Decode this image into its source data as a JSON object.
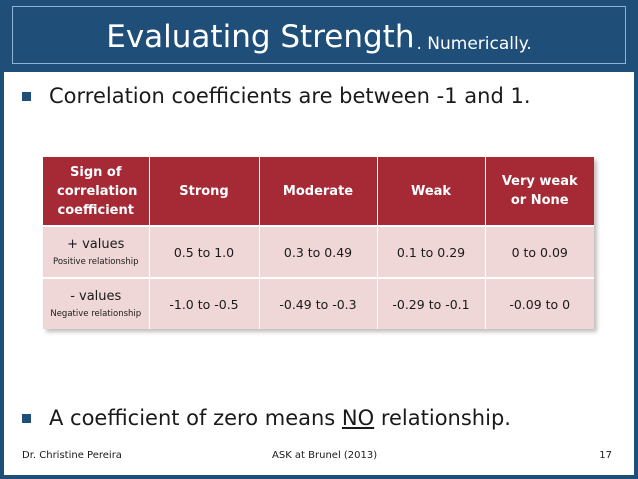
{
  "title": {
    "main": "Evaluating Strength",
    "sub": ". Numerically."
  },
  "bullets": [
    "Correlation coefficients are between -1 and 1.",
    {
      "before": "A coefficient of zero means ",
      "underlined": "NO",
      "after": " relationship."
    }
  ],
  "table": {
    "headers": [
      "Sign of correlation coefficient",
      "Strong",
      "Moderate",
      "Weak",
      "Very weak or None"
    ],
    "rows": [
      {
        "label": "+ values",
        "sublabel": "Positive relationship",
        "cells": [
          "0.5  to  1.0",
          "0.3  to  0.49",
          "0.1  to  0.29",
          "0  to  0.09"
        ]
      },
      {
        "label": "- values",
        "sublabel": "Negative relationship",
        "cells": [
          "-1.0  to  -0.5",
          "-0.49  to  -0.3",
          "-0.29  to  -0.1",
          "-0.09  to  0"
        ]
      }
    ]
  },
  "footer": {
    "author": "Dr. Christine Pereira",
    "source": "ASK at Brunel (2013)",
    "page": "17"
  },
  "colors": {
    "title_bg": "#1f4e79",
    "table_header": "#a52a35",
    "table_cell": "#f0d7d7"
  }
}
